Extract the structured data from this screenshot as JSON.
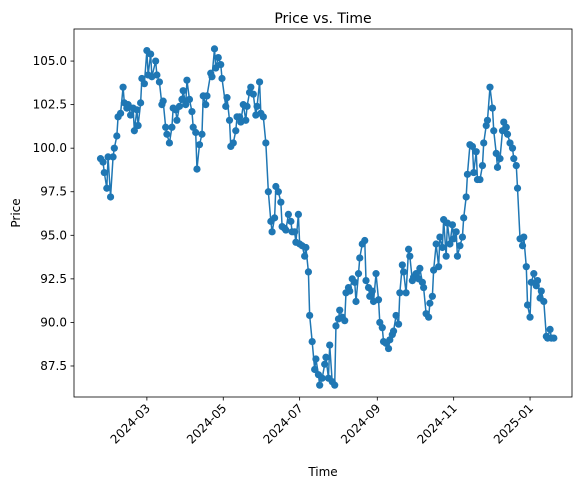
{
  "chart_data": {
    "type": "line",
    "title": "Price vs. Time",
    "xlabel": "Time",
    "ylabel": "Price",
    "color": "#1f77b4",
    "x": [
      19746,
      19748,
      19749,
      19751,
      19752,
      19754,
      19756,
      19757,
      19759,
      19760,
      19762,
      19764,
      19765,
      19767,
      19768,
      19770,
      19772,
      19773,
      19775,
      19776,
      19778,
      19779,
      19781,
      19783,
      19784,
      19786,
      19787,
      19790,
      19791,
      19793,
      19795,
      19796,
      19798,
      19799,
      19801,
      19803,
      19804,
      19806,
      19807,
      19809,
      19811,
      19812,
      19814,
      19815,
      19817,
      19819,
      19820,
      19822,
      19823,
      19825,
      19827,
      19828,
      19830,
      19831,
      19834,
      19835,
      19837,
      19838,
      19840,
      19842,
      19843,
      19846,
      19847,
      19849,
      19850,
      19852,
      19854,
      19855,
      19857,
      19858,
      19860,
      19862,
      19863,
      19865,
      19866,
      19868,
      19870,
      19871,
      19873,
      19874,
      19876,
      19878,
      19880,
      19882,
      19883,
      19885,
      19886,
      19888,
      19890,
      19891,
      19893,
      19894,
      19896,
      19898,
      19899,
      19901,
      19902,
      19904,
      19905,
      19907,
      19909,
      19910,
      19912,
      19913,
      19915,
      19917,
      19918,
      19920,
      19921,
      19923,
      19925,
      19926,
      19928,
      19929,
      19931,
      19933,
      19934,
      19936,
      19937,
      19939,
      19941,
      19942,
      19944,
      19945,
      19947,
      19949,
      19950,
      19952,
      19953,
      19955,
      19957,
      19958,
      19960,
      19961,
      19963,
      19964,
      19966,
      19968,
      19969,
      19971,
      19972,
      19974,
      19976,
      19977,
      19979,
      19980,
      19982,
      19984,
      19985,
      19987,
      19988,
      19990,
      19992,
      19993,
      19995,
      19996,
      19998,
      20000,
      20001,
      20003,
      20004,
      20006,
      20008,
      20009,
      20011,
      20012,
      20014,
      20016,
      20017,
      20019,
      20020,
      20022,
      20023,
      20025,
      20027,
      20028,
      20030,
      20031,
      20033,
      20035,
      20036,
      20038,
      20039,
      20041,
      20043,
      20044,
      20046,
      20047,
      20049,
      20051,
      20052,
      20054,
      20055,
      20057,
      20059,
      20060,
      20062,
      20063,
      20065,
      20067,
      20068,
      20070,
      20071,
      20073,
      20075,
      20076,
      20078,
      20079,
      20081,
      20083,
      20084,
      20086,
      20087,
      20089,
      20090,
      20092,
      20094,
      20095,
      20097,
      20098,
      20100,
      20102,
      20103,
      20105,
      20106,
      20108
    ],
    "values": [
      99.4,
      99.2,
      98.6,
      97.7,
      99.5,
      97.2,
      99.5,
      100.0,
      100.7,
      101.8,
      102.0,
      103.5,
      102.6,
      102.3,
      102.5,
      101.9,
      102.3,
      101.0,
      102.2,
      101.3,
      102.6,
      104.0,
      103.7,
      105.6,
      104.2,
      105.4,
      104.1,
      105.0,
      104.2,
      103.8,
      102.5,
      102.7,
      101.2,
      100.8,
      100.3,
      101.2,
      102.3,
      102.2,
      101.6,
      102.4,
      102.8,
      103.3,
      102.5,
      103.9,
      102.8,
      102.1,
      101.2,
      100.9,
      98.8,
      100.2,
      100.8,
      103.0,
      102.5,
      103.0,
      104.3,
      104.1,
      105.7,
      104.6,
      105.2,
      104.8,
      104.0,
      102.4,
      102.9,
      101.6,
      100.1,
      100.3,
      101.0,
      101.8,
      101.8,
      101.5,
      102.5,
      101.6,
      102.4,
      103.2,
      103.5,
      103.1,
      101.9,
      102.4,
      103.8,
      102.0,
      101.8,
      100.3,
      97.5,
      95.8,
      95.2,
      96.0,
      97.8,
      97.5,
      96.9,
      95.5,
      95.4,
      95.3,
      96.2,
      95.8,
      95.2,
      95.2,
      94.6,
      96.2,
      94.5,
      94.4,
      93.8,
      94.3,
      92.9,
      90.4,
      88.9,
      87.3,
      87.9,
      87.0,
      86.4,
      86.8,
      87.6,
      88.0,
      86.8,
      88.7,
      86.6,
      86.4,
      89.8,
      90.2,
      90.7,
      90.3,
      90.1,
      91.7,
      92.0,
      91.8,
      92.5,
      92.3,
      91.2,
      92.8,
      93.7,
      94.5,
      94.7,
      92.4,
      92.0,
      91.5,
      91.8,
      91.2,
      92.8,
      91.3,
      90.0,
      89.7,
      88.9,
      88.8,
      88.5,
      89.0,
      89.3,
      89.5,
      90.4,
      89.9,
      91.7,
      93.3,
      92.9,
      91.7,
      94.2,
      93.8,
      92.4,
      92.6,
      92.8,
      92.5,
      93.1,
      92.3,
      92.0,
      90.5,
      90.3,
      91.1,
      91.5,
      93.0,
      94.5,
      93.2,
      94.9,
      94.3,
      95.9,
      93.8,
      95.7,
      94.5,
      95.6,
      94.8,
      95.2,
      93.8,
      94.4,
      94.9,
      96.0,
      97.2,
      98.5,
      100.2,
      100.1,
      98.6,
      99.8,
      98.2,
      98.2,
      99.0,
      100.3,
      101.3,
      101.6,
      103.5,
      102.3,
      101.0,
      99.7,
      98.9,
      99.4,
      101.0,
      101.5,
      101.2,
      100.8,
      100.3,
      100.0,
      99.4,
      99.0,
      97.7,
      94.8,
      94.4,
      94.9,
      93.2,
      91.0,
      90.3,
      92.3,
      92.8,
      92.1,
      92.4,
      91.4,
      91.8,
      91.2,
      89.2,
      89.1,
      89.6,
      89.1,
      89.1
    ],
    "xlim": [
      19724.8,
      20122.5
    ],
    "xticks": [
      {
        "value": 19783,
        "label": "2024-03"
      },
      {
        "value": 19844,
        "label": "2024-05"
      },
      {
        "value": 19905,
        "label": "2024-07"
      },
      {
        "value": 19967,
        "label": "2024-09"
      },
      {
        "value": 20028,
        "label": "2024-11"
      },
      {
        "value": 20089,
        "label": "2025-01"
      }
    ],
    "ylim": [
      85.72,
      106.84
    ],
    "yticks": [
      87.5,
      {
        "value": 90,
        "label": "90.0"
      },
      92.5,
      {
        "value": 95,
        "label": "95.0"
      },
      97.5,
      {
        "value": 100,
        "label": "100.0"
      },
      102.5,
      {
        "value": 105,
        "label": "105.0"
      }
    ]
  }
}
